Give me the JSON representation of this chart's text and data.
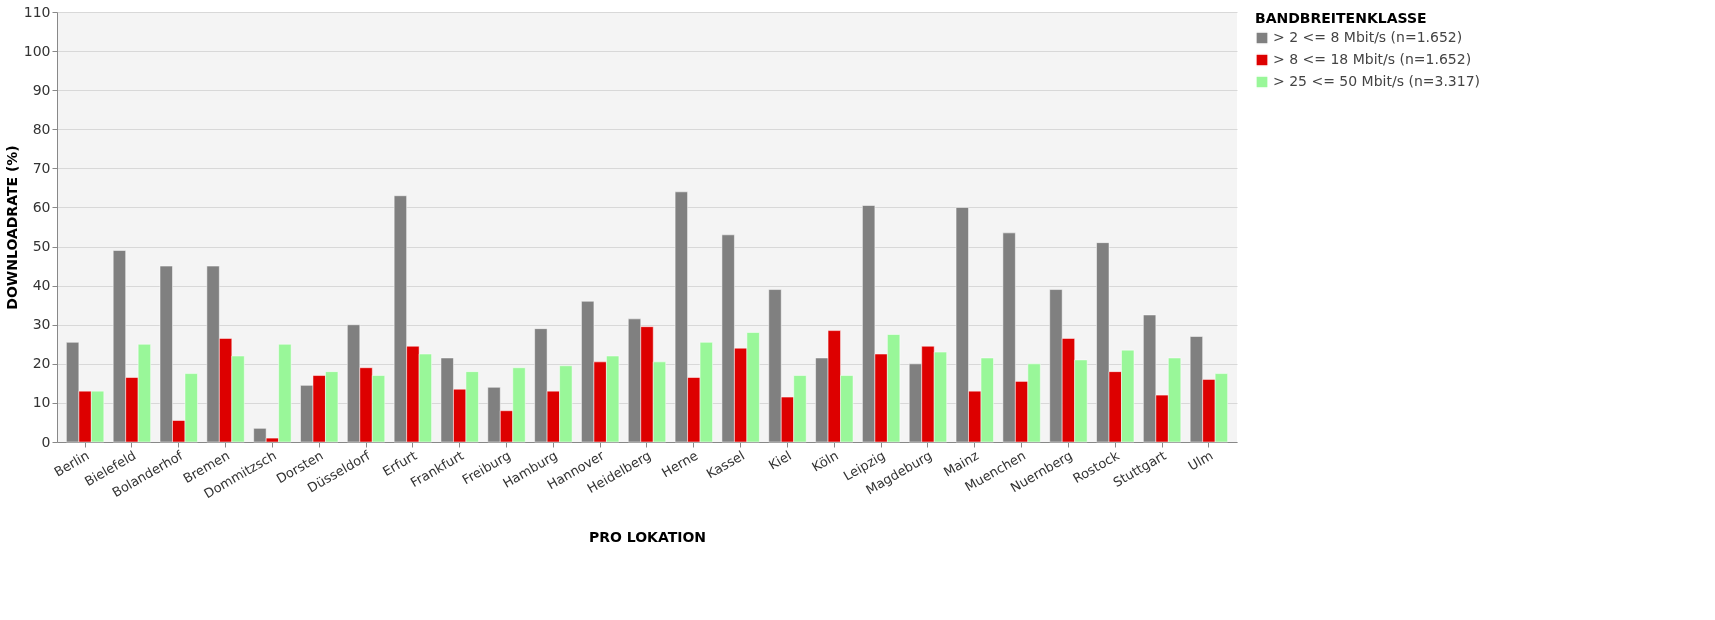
{
  "chart_data": {
    "type": "bar",
    "xlabel": "PRO LOKATION",
    "ylabel": "DOWNLOADRATE (%)",
    "legend_title": "BANDBREITENKLASSE",
    "categories": [
      "Berlin",
      "Bielefeld",
      "Bolanderhof",
      "Bremen",
      "Dommitzsch",
      "Dorsten",
      "Düsseldorf",
      "Erfurt",
      "Frankfurt",
      "Freiburg",
      "Hamburg",
      "Hannover",
      "Heidelberg",
      "Herne",
      "Kassel",
      "Kiel",
      "Köln",
      "Leipzig",
      "Magdeburg",
      "Mainz",
      "Muenchen",
      "Nuernberg",
      "Rostock",
      "Stuttgart",
      "Ulm"
    ],
    "series": [
      {
        "name": "> 2 <= 8 Mbit/s (n=1.652)",
        "color": "#808080",
        "values": [
          25.5,
          49,
          45,
          45,
          3.5,
          14.5,
          30,
          63,
          21.5,
          14,
          29,
          36,
          31.5,
          64,
          53,
          39,
          21.5,
          60.5,
          20,
          60,
          53.5,
          39,
          51,
          32.5,
          27
        ]
      },
      {
        "name": "> 8 <= 18 Mbit/s (n=1.652)",
        "color": "#dd0000",
        "values": [
          13,
          16.5,
          5.5,
          26.5,
          1,
          17,
          19,
          24.5,
          13.5,
          8,
          13,
          20.5,
          29.5,
          16.5,
          24,
          11.5,
          28.5,
          22.5,
          24.5,
          13,
          15.5,
          26.5,
          18,
          12,
          16
        ]
      },
      {
        "name": "> 25 <= 50 Mbit/s (n=3.317)",
        "color": "#99f799",
        "values": [
          13,
          25,
          17.5,
          22,
          25,
          18,
          17,
          22.5,
          18,
          19,
          19.5,
          22,
          20.5,
          25.5,
          28,
          17,
          17,
          27.5,
          23,
          21.5,
          20,
          21,
          23.5,
          21.5,
          17.5
        ]
      }
    ],
    "ylim": [
      0,
      110
    ],
    "yticks": [
      0,
      10,
      20,
      30,
      40,
      50,
      60,
      70,
      80,
      90,
      100,
      110
    ],
    "grid": "y",
    "legend": "right"
  }
}
